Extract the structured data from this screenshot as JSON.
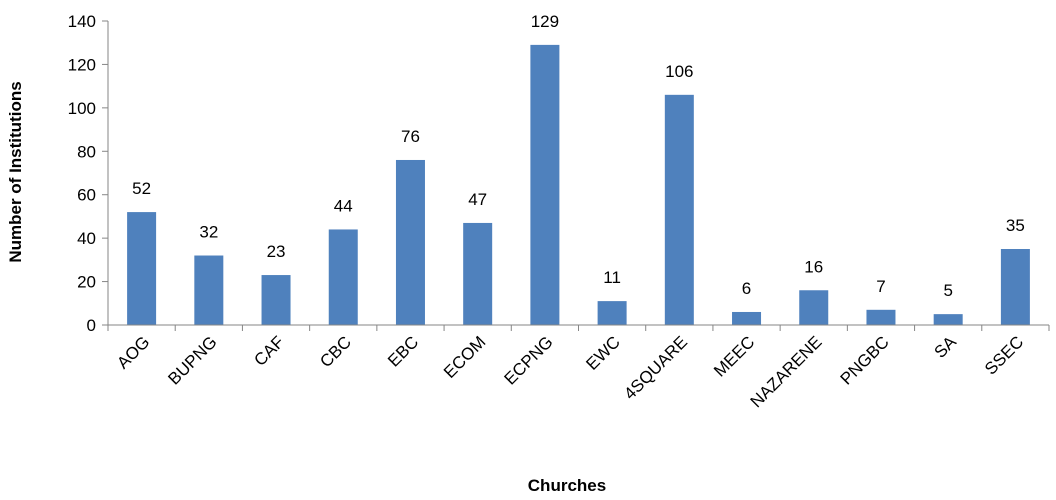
{
  "chart_data": {
    "type": "bar",
    "title": "",
    "xlabel": "Churches",
    "ylabel": "Number of Institutions",
    "ylim": [
      0,
      140
    ],
    "yticks": [
      0,
      20,
      40,
      60,
      80,
      100,
      120,
      140
    ],
    "grid": false,
    "legend": "none",
    "categories": [
      "AOG",
      "BUPNG",
      "CAF",
      "CBC",
      "EBC",
      "ECOM",
      "ECPNG",
      "EWC",
      "4SQUARE",
      "MEEC",
      "NAZARENE",
      "PNGBC",
      "SA",
      "SSEC"
    ],
    "values": [
      52,
      32,
      23,
      44,
      76,
      47,
      129,
      11,
      106,
      6,
      16,
      7,
      5,
      35
    ],
    "bar_color": "#4f81bd",
    "axis_color": "#868686"
  }
}
